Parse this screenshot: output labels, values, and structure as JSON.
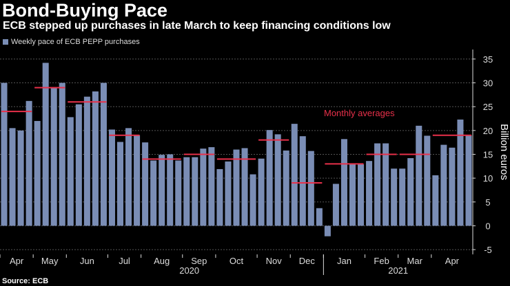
{
  "header": {
    "title": "Bond-Buying Pace",
    "subtitle": "ECB stepped up purchases in late March to keep financing conditions low"
  },
  "footer": {
    "source": "Source: ECB"
  },
  "colors": {
    "bar": "#7a8db5",
    "avg": "#e8304a",
    "grid": "#555555",
    "text": "#dddddd"
  },
  "chart_data": {
    "type": "bar",
    "title": "Bond-Buying Pace",
    "legend": [
      "Weekly pace of ECB PEPP purchases"
    ],
    "ylabel": "Billion euros",
    "ylim": [
      -5,
      37
    ],
    "yticks": [
      -5,
      0,
      5,
      10,
      15,
      20,
      25,
      30,
      35
    ],
    "x_month_labels": [
      "Apr",
      "May",
      "Jun",
      "Jul",
      "Aug",
      "Sep",
      "Oct",
      "Nov",
      "Dec",
      "Jan",
      "Feb",
      "Mar",
      "Apr"
    ],
    "x_year_labels": [
      "2020",
      "2021"
    ],
    "annotation": "Monthly averages",
    "weekly_values": [
      30,
      20.5,
      20,
      26.2,
      22,
      34.2,
      29,
      30,
      22.8,
      25.5,
      27.1,
      28.2,
      30,
      20.2,
      17.6,
      20.5,
      19,
      17.5,
      13.7,
      14.9,
      15,
      13.7,
      14.4,
      14.4,
      16.2,
      16.5,
      11.9,
      13.5,
      16,
      16.3,
      10.8,
      14.1,
      20.1,
      19.2,
      15.8,
      21.4,
      18.8,
      15.7,
      3.7,
      -2.2,
      8.8,
      18.2,
      13,
      12.9,
      13.6,
      17.3,
      17.3,
      12,
      12,
      14.2,
      21,
      18.9,
      10.6,
      17,
      16.4,
      22.3,
      19
    ],
    "monthly_averages": [
      {
        "month": "Apr 2020",
        "value": 24
      },
      {
        "month": "May 2020",
        "value": 29
      },
      {
        "month": "Jun 2020",
        "value": 26
      },
      {
        "month": "Jul 2020",
        "value": 19
      },
      {
        "month": "Aug 2020",
        "value": 14
      },
      {
        "month": "Sep 2020",
        "value": 15
      },
      {
        "month": "Oct 2020",
        "value": 14
      },
      {
        "month": "Nov 2020",
        "value": 18
      },
      {
        "month": "Dec 2020",
        "value": 9
      },
      {
        "month": "Jan 2021",
        "value": 13
      },
      {
        "month": "Feb 2021",
        "value": 15
      },
      {
        "month": "Mar 2021",
        "value": 15
      },
      {
        "month": "Apr 2021",
        "value": 19
      }
    ]
  }
}
